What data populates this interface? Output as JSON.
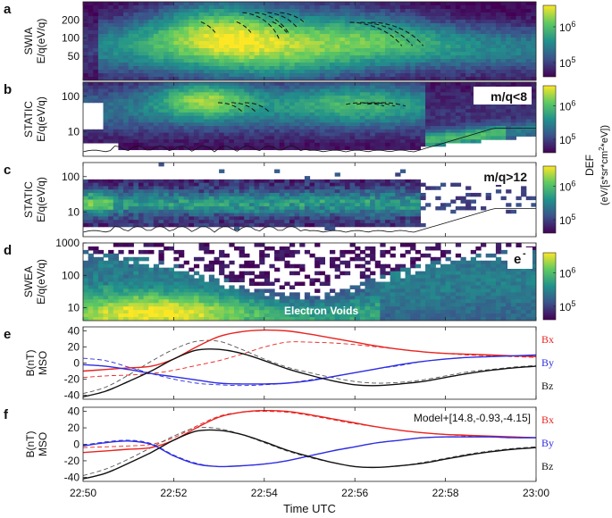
{
  "figure": {
    "shared_x": {
      "label": "Time UTC",
      "ticks": [
        "22:50",
        "22:52",
        "22:54",
        "22:56",
        "22:58",
        "23:00"
      ],
      "range_minutes": [
        0,
        10
      ]
    },
    "colorbar": {
      "title": "DEF",
      "units": "(eV/[s*sr*cm^2*eV])",
      "tick_labels": [
        "10^6",
        "10^5"
      ],
      "colors": [
        "#440154",
        "#3b528b",
        "#21918c",
        "#5ec962",
        "#fde725"
      ]
    }
  },
  "chart_data": [
    {
      "id": "a",
      "panel_letter": "a",
      "type": "heatmap",
      "instrument": "SWIA",
      "ylabel": "E/q(eV/q)",
      "yscale": "log",
      "ylim": [
        20,
        400
      ],
      "yticks": [
        {
          "label": "200",
          "value": 200
        },
        {
          "label": "100",
          "value": 100
        },
        {
          "label": "50",
          "value": 50
        }
      ],
      "annotation": "",
      "colorbar_ticks": [
        "10^6",
        "10^5"
      ],
      "dispersion_arcs": "dashed black dispersion curves near 22:53 and 22:56-22:57"
    },
    {
      "id": "b",
      "panel_letter": "b",
      "type": "heatmap",
      "instrument": "STATIC",
      "ylabel": "E/q(eV/q)",
      "yscale": "log",
      "ylim": [
        2,
        250
      ],
      "yticks": [
        {
          "label": "100",
          "value": 100
        },
        {
          "label": "10",
          "value": 10
        }
      ],
      "annotation": "m/q<8",
      "colorbar_ticks": [
        "10^6",
        "10^5"
      ]
    },
    {
      "id": "c",
      "panel_letter": "c",
      "type": "heatmap",
      "instrument": "STATIC",
      "ylabel": "E/q(eV/q)",
      "yscale": "log",
      "ylim": [
        2,
        250
      ],
      "yticks": [
        {
          "label": "100",
          "value": 100
        },
        {
          "label": "10",
          "value": 10
        }
      ],
      "annotation": "m/q>12",
      "colorbar_ticks": [
        "10^6",
        "10^5"
      ]
    },
    {
      "id": "d",
      "panel_letter": "d",
      "type": "heatmap",
      "instrument": "SWEA",
      "ylabel": "E/q(eV/q)",
      "yscale": "log",
      "ylim": [
        4,
        1000
      ],
      "yticks": [
        {
          "label": "1000",
          "value": 1000
        },
        {
          "label": "100",
          "value": 100
        },
        {
          "label": "10",
          "value": 10
        }
      ],
      "annotation": "e",
      "annotation_sup": "-",
      "inner_label": "Electron Voids",
      "colorbar_ticks": [
        "10^6",
        "10^5"
      ]
    },
    {
      "id": "e",
      "panel_letter": "e",
      "type": "line",
      "ylabel": "B(nT)",
      "ylabel2": "MSO",
      "ylim": [
        -45,
        45
      ],
      "yticks": [
        {
          "label": "40",
          "value": 40
        },
        {
          "label": "20",
          "value": 20
        },
        {
          "label": "0",
          "value": 0
        },
        {
          "label": "-20",
          "value": -20
        },
        {
          "label": "-40",
          "value": -40
        }
      ],
      "annotation": "",
      "x": [
        0,
        0.5,
        1,
        1.5,
        2,
        2.5,
        3,
        3.5,
        4,
        4.5,
        5,
        5.5,
        6,
        6.5,
        7,
        7.5,
        8,
        8.5,
        9,
        9.5,
        10
      ],
      "series": [
        {
          "name": "Bx",
          "color": "#e8231f",
          "dash": false,
          "values": [
            -10,
            -8,
            -6,
            -4,
            5,
            20,
            33,
            39,
            41,
            40,
            36,
            31,
            26,
            21,
            17,
            14,
            12,
            11,
            10,
            9,
            8
          ]
        },
        {
          "name": "By",
          "color": "#2d2de0",
          "dash": false,
          "values": [
            -2,
            -4,
            -8,
            -13,
            -17,
            -21,
            -25,
            -26,
            -26,
            -25,
            -22,
            -17,
            -12,
            -7,
            -2,
            2,
            5,
            7,
            8,
            9,
            10
          ]
        },
        {
          "name": "Bz",
          "color": "#111111",
          "dash": false,
          "values": [
            -42,
            -35,
            -23,
            -10,
            5,
            16,
            17,
            12,
            3,
            -7,
            -15,
            -22,
            -27,
            -28,
            -26,
            -23,
            -18,
            -13,
            -9,
            -6,
            -4
          ]
        },
        {
          "name": "Bx model",
          "color": "#e8231f",
          "dash": true,
          "values": [
            -18,
            -16,
            -15,
            -13,
            -9,
            -3,
            3,
            11,
            20,
            26,
            26,
            25,
            23,
            20,
            17,
            14,
            12,
            10,
            9,
            8,
            7
          ]
        },
        {
          "name": "By model",
          "color": "#2d2de0",
          "dash": true,
          "values": [
            6,
            3,
            -5,
            -13,
            -20,
            -25,
            -27,
            -28,
            -27,
            -25,
            -21,
            -17,
            -12,
            -7,
            -3,
            2,
            5,
            7,
            8,
            9,
            9
          ]
        },
        {
          "name": "Bz model",
          "color": "#555555",
          "dash": true,
          "values": [
            -38,
            -30,
            -15,
            2,
            17,
            27,
            27,
            17,
            5,
            -5,
            -12,
            -18,
            -23,
            -25,
            -24,
            -21,
            -16,
            -11,
            -8,
            -5,
            -3
          ]
        }
      ],
      "legend": [
        {
          "label": "Bx",
          "color": "#e8231f"
        },
        {
          "label": "By",
          "color": "#2d2de0"
        },
        {
          "label": "Bz",
          "color": "#111111"
        }
      ]
    },
    {
      "id": "f",
      "panel_letter": "f",
      "type": "line",
      "ylabel": "B(nT)",
      "ylabel2": "MSO",
      "ylim": [
        -45,
        45
      ],
      "yticks": [
        {
          "label": "40",
          "value": 40
        },
        {
          "label": "20",
          "value": 20
        },
        {
          "label": "0",
          "value": 0
        },
        {
          "label": "-20",
          "value": -20
        },
        {
          "label": "-40",
          "value": -40
        }
      ],
      "annotation": "Model+[14.8,-0.93,-4.15]",
      "x": [
        0,
        0.5,
        1,
        1.5,
        2,
        2.5,
        3,
        3.5,
        4,
        4.5,
        5,
        5.5,
        6,
        6.5,
        7,
        7.5,
        8,
        8.5,
        9,
        9.5,
        10
      ],
      "series": [
        {
          "name": "Bx",
          "color": "#e8231f",
          "dash": false,
          "values": [
            -10,
            -8,
            -6,
            -4,
            5,
            20,
            33,
            39,
            41,
            40,
            36,
            31,
            26,
            21,
            17,
            14,
            12,
            11,
            10,
            9,
            8
          ]
        },
        {
          "name": "By",
          "color": "#2d2de0",
          "dash": false,
          "values": [
            -2,
            2,
            4,
            0,
            -14,
            -24,
            -27,
            -26,
            -24,
            -20,
            -14,
            -8,
            -3,
            2,
            5,
            8,
            9,
            9,
            9,
            8,
            8
          ]
        },
        {
          "name": "Bz",
          "color": "#111111",
          "dash": false,
          "values": [
            -42,
            -35,
            -23,
            -10,
            5,
            16,
            17,
            12,
            3,
            -7,
            -15,
            -22,
            -27,
            -28,
            -26,
            -23,
            -18,
            -13,
            -9,
            -6,
            -4
          ]
        },
        {
          "name": "Bx model",
          "color": "#e8231f",
          "dash": true,
          "values": [
            -4,
            -3,
            -2,
            0,
            8,
            22,
            34,
            39,
            40,
            39,
            35,
            30,
            25,
            21,
            17,
            14,
            12,
            10,
            9,
            9,
            8
          ]
        },
        {
          "name": "By model",
          "color": "#2d2de0",
          "dash": true,
          "values": [
            -1,
            3,
            5,
            1,
            -13,
            -23,
            -27,
            -26,
            -24,
            -20,
            -14,
            -8,
            -3,
            2,
            5,
            8,
            9,
            9,
            9,
            8,
            8
          ]
        },
        {
          "name": "Bz model",
          "color": "#555555",
          "dash": true,
          "values": [
            -38,
            -30,
            -18,
            -4,
            10,
            20,
            19,
            12,
            2,
            -8,
            -16,
            -22,
            -27,
            -28,
            -26,
            -22,
            -17,
            -12,
            -8,
            -5,
            -3
          ]
        }
      ],
      "legend": [
        {
          "label": "Bx",
          "color": "#e8231f"
        },
        {
          "label": "By",
          "color": "#2d2de0"
        },
        {
          "label": "Bz",
          "color": "#111111"
        }
      ]
    }
  ]
}
